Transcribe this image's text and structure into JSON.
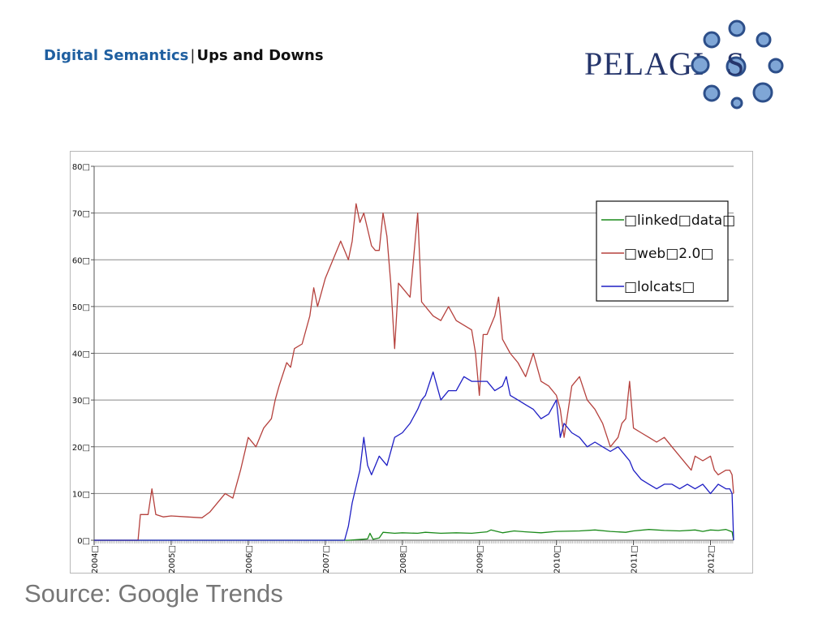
{
  "header": {
    "title": "Digital Semantics",
    "separator": "|",
    "subtitle": "Ups and Downs"
  },
  "logo": {
    "text": "PELAGIOS",
    "text_color": "#25356b",
    "circle_color": "#5b88c4"
  },
  "footer": {
    "source": "Source: Google Trends"
  },
  "chart_data": {
    "type": "line",
    "ylim": [
      0,
      80
    ],
    "yticks": [
      0,
      10,
      20,
      30,
      40,
      50,
      60,
      70,
      80
    ],
    "ytick_labels": [
      "0□",
      "10□",
      "20□",
      "30□",
      "40□",
      "50□",
      "60□",
      "70□",
      "80□"
    ],
    "xlim": [
      2004.0,
      2012.3
    ],
    "xticks": [
      2004,
      2005,
      2006,
      2007,
      2008,
      2009,
      2010,
      2011,
      2012
    ],
    "xtick_labels": [
      "2004□",
      "2005□",
      "2006□",
      "2007□",
      "2008□",
      "2009□",
      "2010□",
      "2011□",
      "2012□"
    ],
    "grid": true,
    "legend_position": "top-right",
    "series": [
      {
        "name": "□linked□data□",
        "color": "#1a8a1a",
        "x": [
          2004.0,
          2007.3,
          2007.55,
          2007.58,
          2007.62,
          2007.7,
          2007.75,
          2007.9,
          2008.0,
          2008.2,
          2008.3,
          2008.5,
          2008.7,
          2008.9,
          2009.1,
          2009.15,
          2009.3,
          2009.45,
          2009.6,
          2009.8,
          2010.0,
          2010.3,
          2010.5,
          2010.7,
          2010.9,
          2011.0,
          2011.2,
          2011.4,
          2011.6,
          2011.8,
          2011.9,
          2012.0,
          2012.1,
          2012.2,
          2012.25,
          2012.28,
          2012.3
        ],
        "y": [
          0,
          0,
          0.3,
          1.5,
          0.2,
          0.5,
          1.7,
          1.5,
          1.6,
          1.5,
          1.7,
          1.5,
          1.6,
          1.5,
          1.8,
          2.2,
          1.6,
          2.0,
          1.8,
          1.6,
          1.9,
          2.0,
          2.2,
          1.9,
          1.7,
          2.0,
          2.3,
          2.1,
          2.0,
          2.2,
          1.9,
          2.2,
          2.1,
          2.3,
          2.0,
          1.8,
          0
        ]
      },
      {
        "name": "□web□2.0□",
        "color": "#b5413d",
        "x": [
          2004.0,
          2004.57,
          2004.6,
          2004.7,
          2004.75,
          2004.8,
          2004.9,
          2005.0,
          2005.2,
          2005.4,
          2005.5,
          2005.6,
          2005.7,
          2005.8,
          2005.9,
          2006.0,
          2006.1,
          2006.2,
          2006.3,
          2006.35,
          2006.4,
          2006.5,
          2006.55,
          2006.6,
          2006.7,
          2006.8,
          2006.85,
          2006.9,
          2007.0,
          2007.1,
          2007.2,
          2007.25,
          2007.3,
          2007.35,
          2007.4,
          2007.45,
          2007.5,
          2007.6,
          2007.65,
          2007.7,
          2007.75,
          2007.8,
          2007.85,
          2007.9,
          2007.95,
          2008.0,
          2008.1,
          2008.2,
          2008.25,
          2008.3,
          2008.4,
          2008.5,
          2008.6,
          2008.7,
          2008.8,
          2008.9,
          2008.95,
          2009.0,
          2009.05,
          2009.1,
          2009.2,
          2009.25,
          2009.3,
          2009.4,
          2009.5,
          2009.6,
          2009.7,
          2009.8,
          2009.9,
          2010.0,
          2010.05,
          2010.1,
          2010.2,
          2010.3,
          2010.4,
          2010.5,
          2010.6,
          2010.7,
          2010.8,
          2010.85,
          2010.9,
          2010.95,
          2011.0,
          2011.1,
          2011.2,
          2011.3,
          2011.4,
          2011.5,
          2011.6,
          2011.7,
          2011.75,
          2011.8,
          2011.9,
          2012.0,
          2012.05,
          2012.1,
          2012.2,
          2012.25,
          2012.28,
          2012.3
        ],
        "y": [
          0,
          0,
          5.5,
          5.5,
          11,
          5.5,
          5,
          5.2,
          5,
          4.8,
          6,
          8,
          10,
          9,
          15,
          22,
          20,
          24,
          26,
          30,
          33,
          38,
          37,
          41,
          42,
          48,
          54,
          50,
          56,
          60,
          64,
          62,
          60,
          64,
          72,
          68,
          70,
          63,
          62,
          62,
          70,
          65,
          55,
          41,
          55,
          54,
          52,
          70,
          51,
          50,
          48,
          47,
          50,
          47,
          46,
          45,
          40,
          31,
          44,
          44,
          48,
          52,
          43,
          40,
          38,
          35,
          40,
          34,
          33,
          31,
          28,
          22,
          33,
          35,
          30,
          28,
          25,
          20,
          22,
          25,
          26,
          34,
          24,
          23,
          22,
          21,
          22,
          20,
          18,
          16,
          15,
          18,
          17,
          18,
          15,
          14,
          15,
          15,
          14,
          10
        ]
      },
      {
        "name": "□lolcats□",
        "color": "#1f1fc4",
        "x": [
          2004.0,
          2007.25,
          2007.3,
          2007.35,
          2007.45,
          2007.5,
          2007.55,
          2007.6,
          2007.7,
          2007.8,
          2007.9,
          2008.0,
          2008.1,
          2008.2,
          2008.25,
          2008.3,
          2008.4,
          2008.5,
          2008.6,
          2008.7,
          2008.8,
          2008.9,
          2009.0,
          2009.1,
          2009.2,
          2009.3,
          2009.35,
          2009.4,
          2009.5,
          2009.6,
          2009.7,
          2009.8,
          2009.9,
          2010.0,
          2010.05,
          2010.1,
          2010.2,
          2010.3,
          2010.4,
          2010.5,
          2010.6,
          2010.7,
          2010.8,
          2010.9,
          2010.95,
          2011.0,
          2011.1,
          2011.2,
          2011.3,
          2011.4,
          2011.5,
          2011.6,
          2011.7,
          2011.8,
          2011.9,
          2012.0,
          2012.1,
          2012.2,
          2012.25,
          2012.28,
          2012.3
        ],
        "y": [
          0,
          0,
          3,
          8,
          15,
          22,
          16,
          14,
          18,
          16,
          22,
          23,
          25,
          28,
          30,
          31,
          36,
          30,
          32,
          32,
          35,
          34,
          34,
          34,
          32,
          33,
          35,
          31,
          30,
          29,
          28,
          26,
          27,
          30,
          22,
          25,
          23,
          22,
          20,
          21,
          20,
          19,
          20,
          18,
          17,
          15,
          13,
          12,
          11,
          12,
          12,
          11,
          12,
          11,
          12,
          10,
          12,
          11,
          11,
          10,
          0
        ]
      }
    ]
  }
}
